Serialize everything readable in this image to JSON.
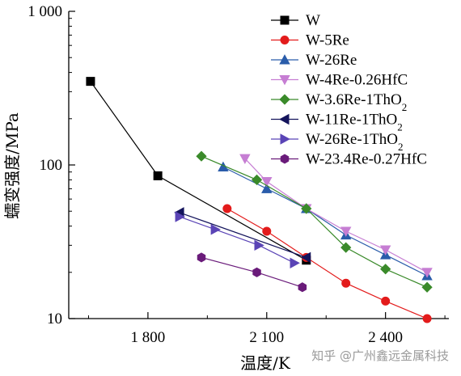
{
  "watermark": "知乎 @广州鑫远金属科技",
  "chart_data": {
    "type": "line",
    "xlabel": "温度/K",
    "ylabel": "蠕变强度/MPa",
    "x_scale": "linear",
    "y_scale": "log",
    "xlim": [
      1600,
      2560
    ],
    "ylim": [
      10,
      1000
    ],
    "x_ticks": [
      1800,
      2100,
      2400
    ],
    "x_tick_labels": [
      "1 800",
      "2 100",
      "2 400"
    ],
    "y_ticks": [
      10,
      100,
      1000
    ],
    "y_tick_labels": [
      "10",
      "100",
      "1 000"
    ],
    "grid": false,
    "legend_position": "top-right",
    "series": [
      {
        "name": "W",
        "legend_sub": "",
        "color": "#000000",
        "marker": "square",
        "points": [
          [
            1655,
            350
          ],
          [
            1825,
            85
          ],
          [
            2200,
            24
          ]
        ]
      },
      {
        "name": "W-5Re",
        "legend_sub": "",
        "color": "#e31b1b",
        "marker": "circle",
        "points": [
          [
            2000,
            52
          ],
          [
            2100,
            37
          ],
          [
            2200,
            25
          ],
          [
            2300,
            17
          ],
          [
            2400,
            13
          ],
          [
            2505,
            10
          ]
        ]
      },
      {
        "name": "W-26Re",
        "legend_sub": "",
        "color": "#2a5caa",
        "marker": "triangle-up",
        "points": [
          [
            1990,
            97
          ],
          [
            2100,
            70
          ],
          [
            2200,
            52
          ],
          [
            2300,
            35
          ],
          [
            2400,
            26
          ],
          [
            2505,
            19
          ]
        ]
      },
      {
        "name": "W-4Re-0.26HfC",
        "legend_sub": "",
        "color": "#c67ed3",
        "marker": "triangle-down",
        "points": [
          [
            2045,
            110
          ],
          [
            2100,
            78
          ],
          [
            2200,
            52
          ],
          [
            2300,
            37
          ],
          [
            2400,
            28
          ],
          [
            2505,
            20
          ]
        ]
      },
      {
        "name": "W-3.6Re-1ThO",
        "legend_sub": "2",
        "color": "#3a8a2a",
        "marker": "diamond",
        "points": [
          [
            1935,
            114
          ],
          [
            2075,
            80
          ],
          [
            2200,
            52
          ],
          [
            2300,
            29
          ],
          [
            2400,
            21
          ],
          [
            2505,
            16
          ]
        ]
      },
      {
        "name": "W-11Re-1ThO",
        "legend_sub": "2",
        "color": "#14145c",
        "marker": "triangle-left",
        "points": [
          [
            1880,
            49
          ],
          [
            2200,
            25
          ]
        ]
      },
      {
        "name": "W-26Re-1ThO",
        "legend_sub": "2",
        "color": "#5a44b6",
        "marker": "triangle-right",
        "points": [
          [
            1880,
            46
          ],
          [
            1970,
            38
          ],
          [
            2080,
            30
          ],
          [
            2170,
            23
          ]
        ]
      },
      {
        "name": "W-23.4Re-0.27HfC",
        "legend_sub": "",
        "color": "#6a1b7a",
        "marker": "hexagon",
        "points": [
          [
            1935,
            25
          ],
          [
            2075,
            20
          ],
          [
            2190,
            16
          ]
        ]
      }
    ]
  }
}
